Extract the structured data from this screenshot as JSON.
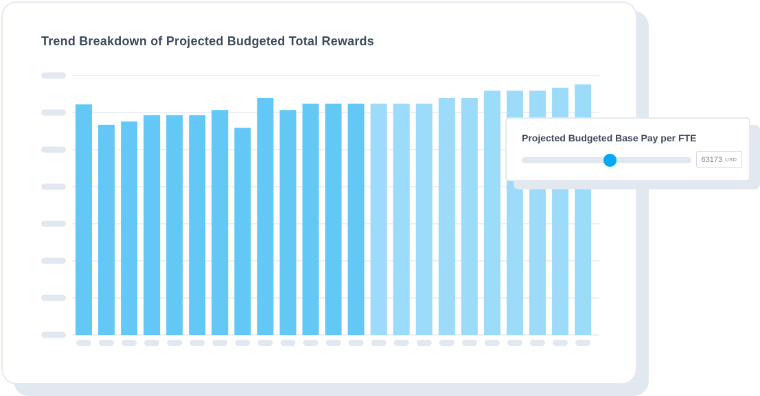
{
  "title": "Trend Breakdown of Projected Budgeted Total Rewards",
  "chart_data": {
    "type": "bar",
    "title": "Trend Breakdown of Projected Budgeted Total Rewards",
    "xlabel": "",
    "ylabel": "",
    "ylim": [
      0,
      7
    ],
    "grid": true,
    "tick_labels_shown": false,
    "values": [
      6.22,
      5.67,
      5.76,
      5.93,
      5.93,
      5.93,
      6.07,
      5.59,
      6.39,
      6.07,
      6.24,
      6.24,
      6.24,
      6.24,
      6.24,
      6.24,
      6.39,
      6.39,
      6.59,
      6.59,
      6.59,
      6.67,
      6.76
    ],
    "actual_count": 13,
    "colors": {
      "actual": "#64c8f7",
      "projected": "#9ddbfa",
      "grid": "#e6eaf0",
      "placeholder": "#e2e8f0"
    }
  },
  "slider_panel": {
    "label": "Projected Budgeted Base Pay per FTE",
    "value": "63173",
    "unit": "USD",
    "fraction": 0.52,
    "accent": "#03a9f4"
  }
}
